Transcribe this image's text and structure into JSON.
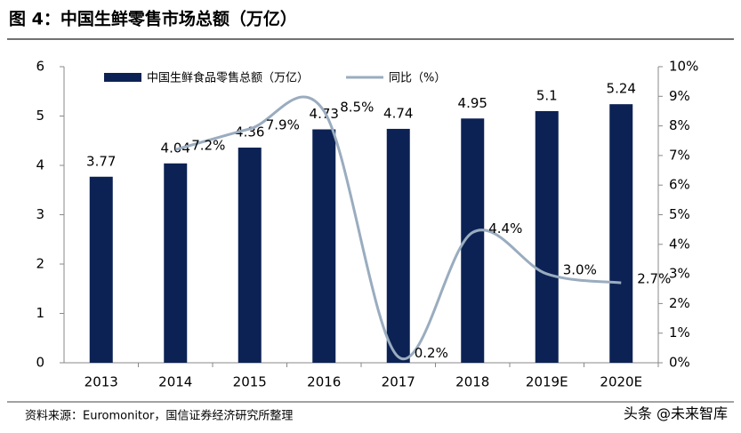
{
  "chart_data": {
    "type": "bar-line",
    "title": "图 4：中国生鲜零售市场总额（万亿）",
    "categories": [
      "2013",
      "2014",
      "2015",
      "2016",
      "2017",
      "2018",
      "2019E",
      "2020E"
    ],
    "series": [
      {
        "name": "中国生鲜食品零售总额（万亿）",
        "type": "bar",
        "color": "#0c2254",
        "values": [
          3.77,
          4.04,
          4.36,
          4.73,
          4.74,
          4.95,
          5.1,
          5.24
        ]
      },
      {
        "name": "同比（%）",
        "type": "line",
        "axis": "y2",
        "color": "#9aacbf",
        "values": [
          null,
          7.2,
          7.9,
          8.5,
          0.2,
          4.4,
          3.0,
          2.7
        ],
        "value_labels": [
          null,
          "7.2%",
          "7.9%",
          "8.5%",
          "0.2%",
          "4.4%",
          "3.0%",
          "2.7%"
        ]
      }
    ],
    "ylim": [
      0,
      6
    ],
    "yticks": [
      0,
      1,
      2,
      3,
      4,
      5,
      6
    ],
    "y2lim": [
      0,
      10
    ],
    "y2ticks": [
      {
        "value": 0,
        "label": "0%"
      },
      {
        "value": 1,
        "label": "1%"
      },
      {
        "value": 2,
        "label": "2%"
      },
      {
        "value": 3,
        "label": "3%"
      },
      {
        "value": 4,
        "label": "4%"
      },
      {
        "value": 5,
        "label": "5%"
      },
      {
        "value": 6,
        "label": "6%"
      },
      {
        "value": 7,
        "label": "7%"
      },
      {
        "value": 8,
        "label": "8%"
      },
      {
        "value": 9,
        "label": "9%"
      },
      {
        "value": 10,
        "label": "10%"
      }
    ],
    "legend": "top",
    "source": "资料来源：Euromonitor，国信证券经济研究所整理",
    "watermark": "头条 @未来智库"
  }
}
